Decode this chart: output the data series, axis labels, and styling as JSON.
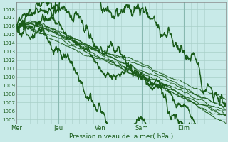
{
  "xlabel": "Pression niveau de la mer( hPa )",
  "ylim": [
    1004.5,
    1018.8
  ],
  "yticks": [
    1005,
    1006,
    1007,
    1008,
    1009,
    1010,
    1011,
    1012,
    1013,
    1014,
    1015,
    1016,
    1017,
    1018
  ],
  "day_labels": [
    "Mer",
    "Jeu",
    "Ven",
    "Sam",
    "Dim"
  ],
  "day_positions": [
    0,
    24,
    48,
    72,
    96
  ],
  "total_hours": 120,
  "bg_color": "#c8eae8",
  "grid_minor_color": "#a8cfc8",
  "grid_major_color": "#88b8b0",
  "line_color_dark": "#1a5c1a",
  "line_color_med": "#2a7a2a",
  "line_color_light": "#3a9a3a"
}
